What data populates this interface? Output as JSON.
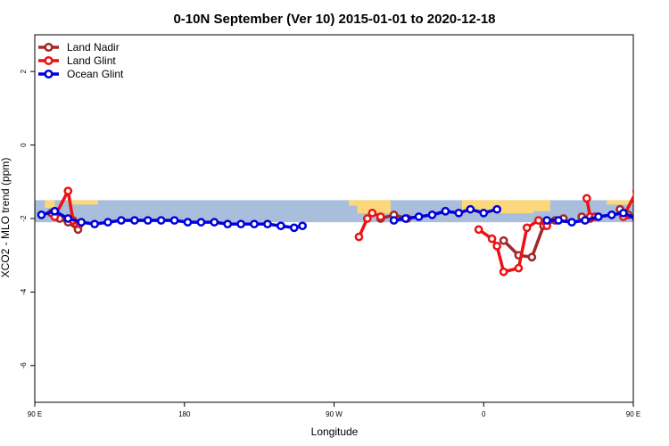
{
  "chart_data": {
    "type": "line",
    "title": "0-10N September (Ver 10)   2015-01-01 to 2020-12-18",
    "xlabel": "Longitude",
    "ylabel": "XCO2 - MLO trend (ppm)",
    "xlim": [
      90,
      450
    ],
    "ylim": [
      -7,
      3
    ],
    "x_ticks": [
      {
        "value": 90,
        "label": "90 E"
      },
      {
        "value": 180,
        "label": "180"
      },
      {
        "value": 270,
        "label": "90 W"
      },
      {
        "value": 360,
        "label": "0"
      },
      {
        "value": 450,
        "label": "90 E"
      }
    ],
    "y_ticks": [
      {
        "value": 2,
        "label": "2"
      },
      {
        "value": 0,
        "label": "0"
      },
      {
        "value": -2,
        "label": "-2"
      },
      {
        "value": -4,
        "label": "-4"
      },
      {
        "value": -6,
        "label": "-6"
      }
    ],
    "legend_position": "top-left",
    "background_band": {
      "y_range": [
        -2.1,
        -1.5
      ],
      "ocean_color": "#a8bedc",
      "land_color": "#fcd87a"
    },
    "land_regions": [
      {
        "x_range": [
          96,
          102
        ],
        "depth": 0.35
      },
      {
        "x_range": [
          110,
          128
        ],
        "depth": 0.2
      },
      {
        "x_range": [
          279,
          284
        ],
        "depth": 0.25
      },
      {
        "x_range": [
          284,
          304
        ],
        "depth": 0.6
      },
      {
        "x_range": [
          347,
          370
        ],
        "depth": 0.6
      },
      {
        "x_range": [
          370,
          390
        ],
        "depth": 0.6
      },
      {
        "x_range": [
          390,
          400
        ],
        "depth": 0.5
      },
      {
        "x_range": [
          434,
          450
        ],
        "depth": 0.2
      }
    ],
    "series": [
      {
        "name": "Land Nadir",
        "color": "#a02828",
        "segments": [
          [
            [
              100,
              -1.85
            ],
            [
              105,
              -2.0
            ],
            [
              110,
              -2.1
            ],
            [
              116,
              -2.3
            ]
          ],
          [
            [
              298,
              -2.0
            ],
            [
              306,
              -1.9
            ],
            [
              314,
              -2.0
            ]
          ],
          [
            [
              372,
              -2.6
            ],
            [
              381,
              -3.0
            ],
            [
              389,
              -3.05
            ],
            [
              396,
              -2.2
            ],
            [
              403,
              -2.05
            ],
            [
              408,
              -2.0
            ]
          ],
          [
            [
              419,
              -1.95
            ],
            [
              424,
              -2.0
            ]
          ],
          [
            [
              442,
              -1.75
            ],
            [
              447,
              -1.9
            ],
            [
              452,
              -2.05
            ],
            [
              459,
              -2.3
            ]
          ]
        ]
      },
      {
        "name": "Land Glint",
        "color": "#ee1111",
        "segments": [
          [
            [
              102,
              -1.95
            ],
            [
              110,
              -1.25
            ],
            [
              113,
              -2.05
            ],
            [
              117,
              -2.15
            ]
          ],
          [
            [
              285,
              -2.5
            ],
            [
              290,
              -2.0
            ],
            [
              293,
              -1.85
            ],
            [
              298,
              -1.95
            ]
          ],
          [
            [
              357,
              -2.3
            ],
            [
              365,
              -2.55
            ],
            [
              368,
              -2.75
            ],
            [
              372,
              -3.45
            ],
            [
              381,
              -3.35
            ],
            [
              386,
              -2.25
            ],
            [
              393,
              -2.05
            ],
            [
              398,
              -2.2
            ]
          ],
          [
            [
              422,
              -1.45
            ],
            [
              424,
              -1.95
            ],
            [
              427,
              -1.95
            ]
          ],
          [
            [
              444,
              -1.95
            ],
            [
              452,
              -1.25
            ],
            [
              455,
              -2.05
            ],
            [
              459,
              -2.15
            ]
          ]
        ]
      },
      {
        "name": "Ocean Glint",
        "color": "#0000dd",
        "segments": [
          [
            [
              94,
              -1.9
            ],
            [
              102,
              -1.8
            ],
            [
              110,
              -2.0
            ],
            [
              118,
              -2.1
            ],
            [
              126,
              -2.15
            ],
            [
              134,
              -2.1
            ],
            [
              142,
              -2.05
            ],
            [
              150,
              -2.05
            ],
            [
              158,
              -2.05
            ],
            [
              166,
              -2.05
            ],
            [
              174,
              -2.05
            ],
            [
              182,
              -2.1
            ],
            [
              190,
              -2.1
            ],
            [
              198,
              -2.1
            ],
            [
              206,
              -2.15
            ],
            [
              214,
              -2.15
            ],
            [
              222,
              -2.15
            ],
            [
              230,
              -2.15
            ],
            [
              238,
              -2.2
            ],
            [
              246,
              -2.25
            ],
            [
              251,
              -2.2
            ]
          ],
          [
            [
              306,
              -2.05
            ],
            [
              313,
              -2.0
            ],
            [
              321,
              -1.95
            ],
            [
              329,
              -1.9
            ],
            [
              337,
              -1.8
            ],
            [
              345,
              -1.85
            ],
            [
              352,
              -1.75
            ],
            [
              360,
              -1.85
            ],
            [
              368,
              -1.75
            ]
          ],
          [
            [
              398,
              -2.05
            ],
            [
              405,
              -2.05
            ],
            [
              413,
              -2.1
            ],
            [
              421,
              -2.05
            ],
            [
              429,
              -1.95
            ],
            [
              437,
              -1.9
            ],
            [
              444,
              -1.85
            ],
            [
              452,
              -2.0
            ],
            [
              460,
              -2.1
            ],
            [
              468,
              -2.15
            ],
            [
              476,
              -2.15
            ],
            [
              484,
              -2.1
            ],
            [
              492,
              -2.05
            ],
            [
              500,
              -2.05
            ]
          ]
        ]
      }
    ]
  }
}
